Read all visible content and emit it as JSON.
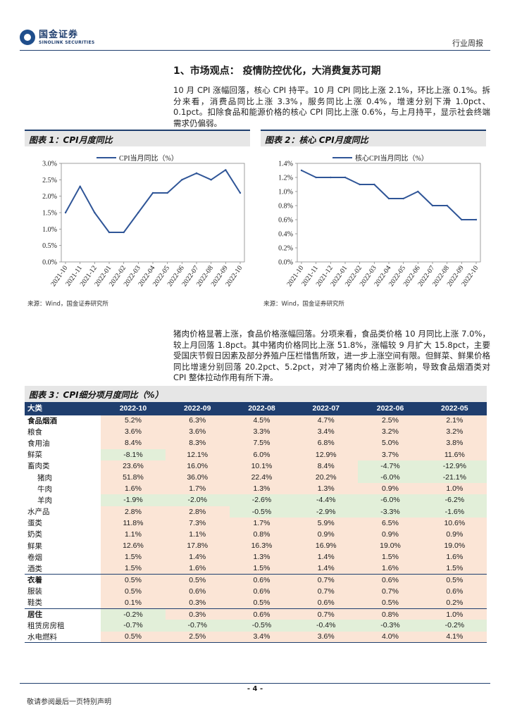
{
  "header": {
    "logo_cn": "国金证券",
    "logo_en": "SINOLINK SECURITIES",
    "tag": "行业周报"
  },
  "section": {
    "title": "1、市场观点：  疫情防控优化，大消费复苏可期"
  },
  "paragraphs": {
    "p1": "10 月 CPI 涨幅回落，核心 CPI 持平。10 月 CPI 同比上涨 2.1%，环比上涨 0.1%。拆分来看，消费品同比上涨 3.3%，服务同比上涨 0.4%，增速分别下滑 1.0pct、0.1pct。扣除食品和能源价格的核心 CPI 同比上涨 0.6%，与上月持平，显示社会终端需求仍偏弱。",
    "p2": "猪肉价格显著上涨，食品价格涨幅回落。分项来看，食品类价格 10 月同比上涨 7.0%，较上月回落 1.8pct。其中猪肉价格同比上涨 51.8%，涨幅较 9 月扩大 15.8pct，主要受国庆节假日因素及部分养殖户压栏惜售所致，进一步上涨空间有限。但鲜菜、鲜果价格同比增速分别回落 20.2pct、5.2pct，对冲了猪肉价格上涨影响，导致食品烟酒类对 CPI 整体拉动作用有所下滑。"
  },
  "figures": {
    "fig1_title": "图表 1：CPI月度同比",
    "fig2_title": "图表 2：核心 CPI月度同比",
    "fig3_title": "图表 3：CPI细分项月度同比（%）",
    "source1": "来源：Wind，国金证券研究所",
    "source2": "来源：Wind，国金证券研究所"
  },
  "chart_data": [
    {
      "type": "line",
      "title": "",
      "legend": "CPI当月同比（%）",
      "legend_position": "top",
      "x": [
        "2021-10",
        "2021-11",
        "2021-12",
        "2022-01",
        "2022-02",
        "2022-03",
        "2022-04",
        "2022-05",
        "2022-06",
        "2022-07",
        "2022-08",
        "2022-09",
        "2022-10"
      ],
      "values": [
        1.5,
        2.3,
        1.5,
        0.9,
        0.9,
        1.5,
        2.1,
        2.1,
        2.5,
        2.7,
        2.5,
        2.8,
        2.1
      ],
      "ylim": [
        0,
        3.0
      ],
      "yticks": [
        "0.0%",
        "0.5%",
        "1.0%",
        "1.5%",
        "2.0%",
        "2.5%",
        "3.0%"
      ],
      "color": "#2f5597"
    },
    {
      "type": "line",
      "title": "",
      "legend": "核心CPI当月同比（%）",
      "legend_position": "top",
      "x": [
        "2021-10",
        "2021-11",
        "2021-12",
        "2022-01",
        "2022-02",
        "2022-03",
        "2022-04",
        "2022-05",
        "2022-06",
        "2022-07",
        "2022-08",
        "2022-09",
        "2022-10"
      ],
      "values": [
        1.3,
        1.2,
        1.2,
        1.2,
        1.1,
        1.1,
        0.9,
        0.9,
        1.0,
        0.8,
        0.8,
        0.6,
        0.6
      ],
      "ylim": [
        0,
        1.4
      ],
      "yticks": [
        "0.0%",
        "0.2%",
        "0.4%",
        "0.6%",
        "0.8%",
        "1.0%",
        "1.2%",
        "1.4%"
      ],
      "color": "#2f5597"
    }
  ],
  "table": {
    "headers": [
      "大类",
      "2022-10",
      "2022-09",
      "2022-08",
      "2022-07",
      "2022-06",
      "2022-05"
    ],
    "rows": [
      {
        "name": "食品烟酒",
        "level": 0,
        "bold": true,
        "sep": true,
        "values": [
          "5.2%",
          "6.3%",
          "4.5%",
          "4.7%",
          "2.5%",
          "2.1%"
        ]
      },
      {
        "name": "粮食",
        "level": 0,
        "values": [
          "3.6%",
          "3.6%",
          "3.3%",
          "3.4%",
          "3.2%",
          "3.2%"
        ]
      },
      {
        "name": "食用油",
        "level": 0,
        "values": [
          "8.4%",
          "8.3%",
          "7.5%",
          "6.8%",
          "5.0%",
          "3.8%"
        ]
      },
      {
        "name": "鲜菜",
        "level": 0,
        "values": [
          "-8.1%",
          "12.1%",
          "6.0%",
          "12.9%",
          "3.7%",
          "11.6%"
        ]
      },
      {
        "name": "畜肉类",
        "level": 0,
        "values": [
          "23.6%",
          "16.0%",
          "10.1%",
          "8.4%",
          "-4.7%",
          "-12.9%"
        ]
      },
      {
        "name": "猪肉",
        "level": 1,
        "values": [
          "51.8%",
          "36.0%",
          "22.4%",
          "20.2%",
          "-6.0%",
          "-21.1%"
        ]
      },
      {
        "name": "牛肉",
        "level": 1,
        "values": [
          "1.6%",
          "1.7%",
          "1.3%",
          "1.3%",
          "0.9%",
          "1.0%"
        ]
      },
      {
        "name": "羊肉",
        "level": 1,
        "values": [
          "-1.9%",
          "-2.0%",
          "-2.6%",
          "-4.4%",
          "-6.0%",
          "-6.2%"
        ]
      },
      {
        "name": "水产品",
        "level": 0,
        "values": [
          "2.8%",
          "2.8%",
          "-0.5%",
          "-2.9%",
          "-3.3%",
          "-1.6%"
        ]
      },
      {
        "name": "蛋类",
        "level": 0,
        "values": [
          "11.8%",
          "7.3%",
          "1.7%",
          "5.9%",
          "6.5%",
          "10.6%"
        ]
      },
      {
        "name": "奶类",
        "level": 0,
        "values": [
          "1.1%",
          "1.1%",
          "0.8%",
          "0.9%",
          "0.9%",
          "0.9%"
        ]
      },
      {
        "name": "鲜果",
        "level": 0,
        "values": [
          "12.6%",
          "17.8%",
          "16.3%",
          "16.9%",
          "19.0%",
          "19.0%"
        ]
      },
      {
        "name": "卷烟",
        "level": 0,
        "values": [
          "1.5%",
          "1.4%",
          "1.3%",
          "1.4%",
          "1.5%",
          "1.6%"
        ]
      },
      {
        "name": "酒类",
        "level": 0,
        "values": [
          "1.5%",
          "1.6%",
          "1.5%",
          "1.4%",
          "1.6%",
          "1.5%"
        ]
      },
      {
        "name": "衣着",
        "level": 0,
        "bold": true,
        "sep": true,
        "values": [
          "0.5%",
          "0.5%",
          "0.6%",
          "0.7%",
          "0.6%",
          "0.5%"
        ]
      },
      {
        "name": "服装",
        "level": 0,
        "values": [
          "0.5%",
          "0.6%",
          "0.6%",
          "0.7%",
          "0.7%",
          "0.6%"
        ]
      },
      {
        "name": "鞋类",
        "level": 0,
        "values": [
          "0.1%",
          "0.3%",
          "0.5%",
          "0.6%",
          "0.5%",
          "0.2%"
        ]
      },
      {
        "name": "居住",
        "level": 0,
        "bold": true,
        "sep": true,
        "values": [
          "-0.2%",
          "0.3%",
          "0.6%",
          "0.7%",
          "0.8%",
          "1.0%"
        ]
      },
      {
        "name": "租赁房房租",
        "level": 0,
        "values": [
          "-0.7%",
          "-0.7%",
          "-0.5%",
          "-0.4%",
          "-0.3%",
          "-0.2%"
        ]
      },
      {
        "name": "水电燃料",
        "level": 0,
        "last": true,
        "values": [
          "0.5%",
          "2.5%",
          "3.4%",
          "3.6%",
          "4.0%",
          "4.1%"
        ]
      }
    ]
  },
  "footer": {
    "page": "- 4 -",
    "disclaimer": "敬请参阅最后一页特别声明"
  },
  "colors": {
    "brand": "#1f3e6e",
    "positive_cell": "#fbe5d6",
    "negative_cell": "#e2efd9",
    "line": "#2f5597"
  }
}
